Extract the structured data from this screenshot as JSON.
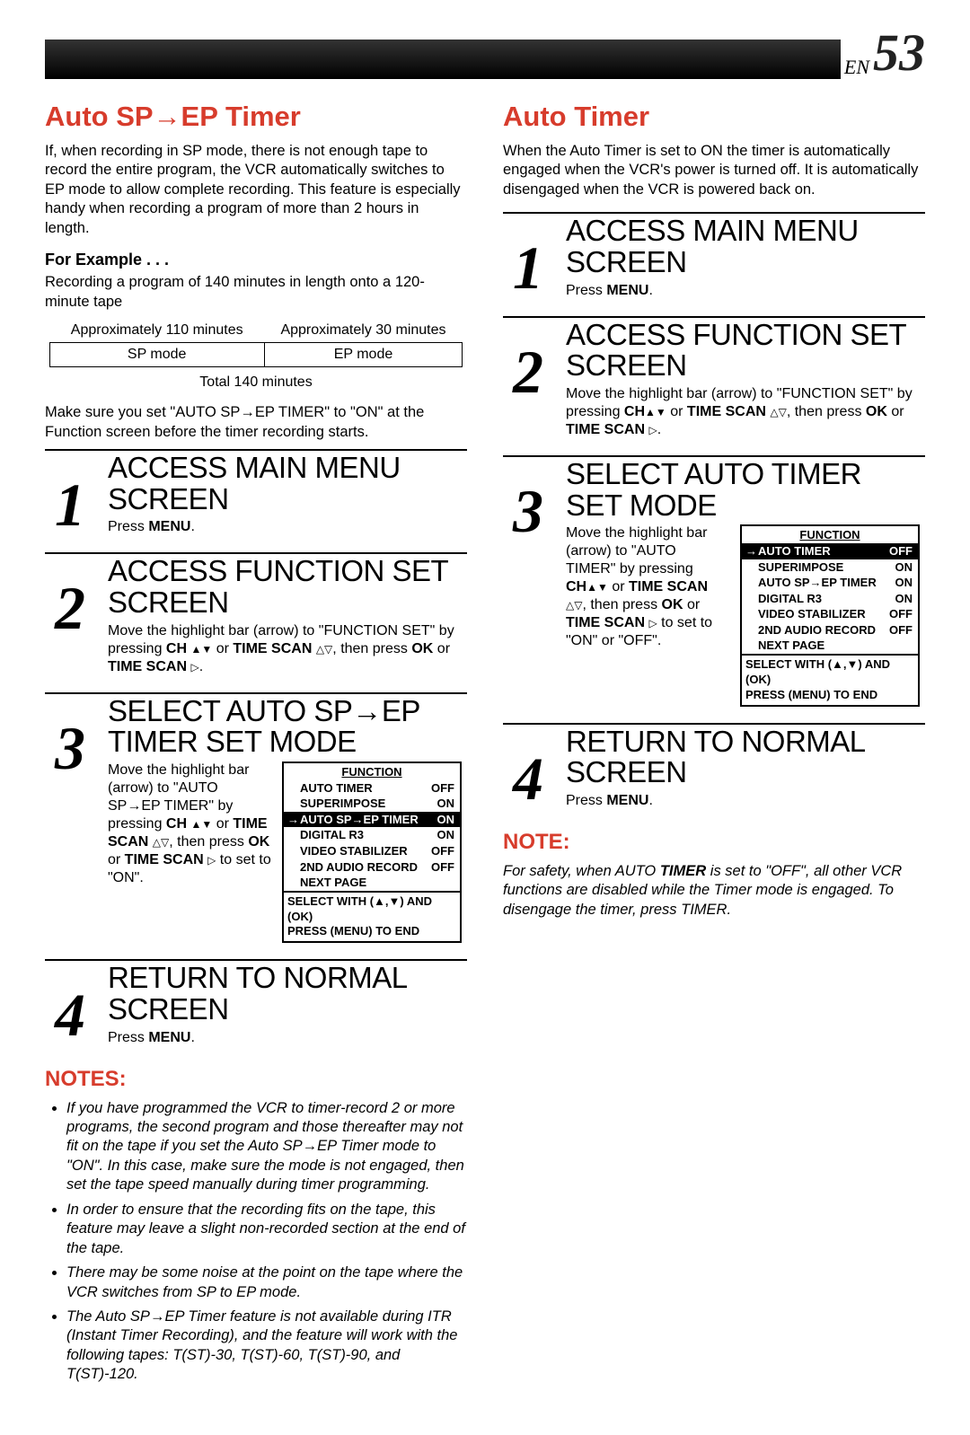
{
  "page": {
    "en_label": "EN",
    "number": "53"
  },
  "left": {
    "title": "Auto SP→EP Timer",
    "intro": "If, when recording in SP mode, there is not enough tape to record the entire program, the VCR automatically switches to EP mode to allow complete recording. This feature is especially handy when recording a program of more than 2 hours in length.",
    "example_heading": "For Example . . .",
    "example_text": "Recording a program of 140 minutes in length onto a 120-minute tape",
    "table": {
      "h1": "Approximately 110 minutes",
      "h2": "Approximately 30 minutes",
      "c1": "SP mode",
      "c2": "EP mode",
      "total": "Total 140 minutes"
    },
    "make_sure": "Make sure you set \"AUTO SP→EP TIMER\" to \"ON\" at the Function screen before the timer recording starts.",
    "steps": [
      {
        "num": "1",
        "title": "ACCESS MAIN MENU SCREEN",
        "body_html": "Press <b>MENU</b>."
      },
      {
        "num": "2",
        "title": "ACCESS FUNCTION SET SCREEN",
        "body_html": "Move the highlight bar (arrow) to \"FUNCTION SET\" by pressing <b>CH</b> <span class='tri'>▲▼</span> or <b>TIME SCAN</b> <span class='tri'>△▽</span>, then press <b>OK</b> or <b>TIME SCAN</b> <span class='tri'>▷</span>."
      },
      {
        "num": "3",
        "title": "SELECT AUTO SP→EP TIMER SET MODE",
        "body_html": "Move the highlight bar (arrow) to \"AUTO SP→EP TIMER\" by pressing <b>CH</b> <span class='tri'>▲▼</span> or <b>TIME SCAN</b> <span class='tri'>△▽</span>, then press <b>OK</b> or <b>TIME SCAN</b> <span class='tri'>▷</span> to set to \"ON\"."
      },
      {
        "num": "4",
        "title": "RETURN TO NORMAL SCREEN",
        "body_html": "Press <b>MENU</b>."
      }
    ],
    "func_box": {
      "title": "FUNCTION",
      "rows": [
        {
          "label": "AUTO TIMER",
          "val": "OFF",
          "hl": false
        },
        {
          "label": "SUPERIMPOSE",
          "val": "ON",
          "hl": false
        },
        {
          "label": "AUTO SP→EP TIMER",
          "val": "ON",
          "hl": true
        },
        {
          "label": "DIGITAL R3",
          "val": "ON",
          "hl": false
        },
        {
          "label": "VIDEO STABILIZER",
          "val": "OFF",
          "hl": false
        },
        {
          "label": "2ND AUDIO RECORD",
          "val": "OFF",
          "hl": false
        }
      ],
      "next_page": "NEXT PAGE",
      "footer1": "SELECT WITH (▲,▼) AND (OK)",
      "footer2": "PRESS (MENU) TO END"
    },
    "notes_heading": "NOTES:",
    "notes": [
      "If you have programmed the VCR to timer-record 2 or more programs, the second program and those thereafter may not fit on the tape if you set the Auto SP→EP Timer mode to \"ON\". In this case, make sure the mode is not engaged, then set the tape speed manually during timer programming.",
      "In order to ensure that the recording fits on the tape, this feature may leave a slight non-recorded section at the end of the tape.",
      "There may be some noise at the point on the tape where the VCR switches from SP to EP mode.",
      "The Auto SP→EP Timer feature is not available during ITR (Instant Timer Recording), and the feature will work with the following tapes:  T(ST)-30, T(ST)-60, T(ST)-90, and T(ST)-120."
    ]
  },
  "right": {
    "title": "Auto Timer",
    "intro": "When the Auto Timer is set to ON the timer is automatically engaged when the VCR's power is turned off. It is automatically disengaged when the VCR is powered back on.",
    "steps": [
      {
        "num": "1",
        "title": "ACCESS MAIN MENU SCREEN",
        "body_html": "Press <b>MENU</b>."
      },
      {
        "num": "2",
        "title": "ACCESS FUNCTION SET SCREEN",
        "body_html": "Move the highlight bar (arrow) to \"FUNCTION SET\" by pressing <b>CH</b><span class='tri'>▲▼</span> or <b>TIME SCAN</b> <span class='tri'>△▽</span>, then press <b>OK</b> or <b>TIME SCAN</b> <span class='tri'>▷</span>."
      },
      {
        "num": "3",
        "title": "SELECT AUTO TIMER SET MODE",
        "body_html": "Move the highlight bar (arrow) to \"AUTO TIMER\" by pressing <b>CH</b><span class='tri'>▲▼</span> or <b>TIME SCAN</b> <span class='tri'>△▽</span>, then press <b>OK</b> or <b>TIME SCAN</b> <span class='tri'>▷</span> to set to \"ON\" or \"OFF\"."
      },
      {
        "num": "4",
        "title": "RETURN TO NORMAL SCREEN",
        "body_html": "Press <b>MENU</b>."
      }
    ],
    "func_box": {
      "title": "FUNCTION",
      "rows": [
        {
          "label": "AUTO TIMER",
          "val": "OFF",
          "hl": true
        },
        {
          "label": "SUPERIMPOSE",
          "val": "ON",
          "hl": false
        },
        {
          "label": "AUTO SP→EP TIMER",
          "val": "ON",
          "hl": false
        },
        {
          "label": "DIGITAL R3",
          "val": "ON",
          "hl": false
        },
        {
          "label": "VIDEO STABILIZER",
          "val": "OFF",
          "hl": false
        },
        {
          "label": "2ND AUDIO RECORD",
          "val": "OFF",
          "hl": false
        }
      ],
      "next_page": "NEXT PAGE",
      "footer1": "SELECT WITH (▲,▼) AND (OK)",
      "footer2": "PRESS (MENU) TO END"
    },
    "note_heading": "NOTE:",
    "note": "For safety, when AUTO TIMER is set to \"OFF\", all other VCR functions are disabled while the Timer mode is engaged. To disengage the timer, press TIMER."
  }
}
